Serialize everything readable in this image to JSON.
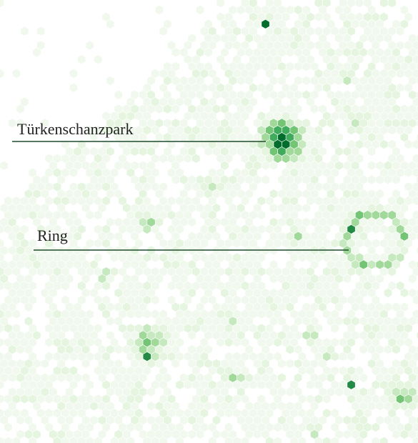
{
  "annotations": [
    {
      "id": "turkenschanzpark",
      "text": "Türkenschanzpark"
    },
    {
      "id": "ring",
      "text": "Ring"
    }
  ],
  "colors": {
    "background": "#ffffff",
    "leader_line": "#1f4a2c",
    "label_text": "#222222",
    "density_scale": [
      "#f1f9ee",
      "#e5f5e0",
      "#c7e9c0",
      "#a1d99b",
      "#74c476",
      "#41ab5d",
      "#238b45",
      "#006d2c",
      "#00441b"
    ]
  }
}
